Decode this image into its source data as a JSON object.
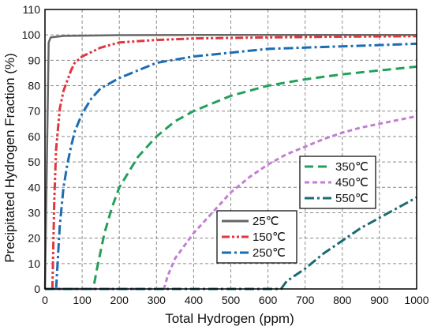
{
  "chart_data": {
    "type": "line",
    "xlabel": "Total Hydrogen (ppm)",
    "ylabel": "Precipitated Hydrogen Fraction (%)",
    "xlim": [
      0,
      1000
    ],
    "ylim": [
      0,
      110
    ],
    "xticks": [
      0,
      100,
      200,
      300,
      400,
      500,
      600,
      700,
      800,
      900,
      1000
    ],
    "yticks": [
      0,
      10,
      20,
      30,
      40,
      50,
      60,
      70,
      80,
      90,
      100,
      110
    ],
    "grid": "dashed",
    "legends": [
      {
        "placement": "bottom-left",
        "series_indices": [
          0,
          1,
          2
        ]
      },
      {
        "placement": "middle-right",
        "series_indices": [
          3,
          4,
          5
        ]
      }
    ],
    "series": [
      {
        "name": "25℃",
        "color": "#666666",
        "dash": "solid",
        "x": [
          0,
          10,
          15,
          50,
          200,
          500,
          1000
        ],
        "y": [
          0,
          97,
          99,
          99.6,
          99.9,
          100,
          100
        ]
      },
      {
        "name": "150℃",
        "color": "#e0373d",
        "dash": "dash-dot-dot",
        "x": [
          20,
          25,
          30,
          40,
          50,
          60,
          70,
          80,
          100,
          150,
          200,
          300,
          400,
          600,
          800,
          1000
        ],
        "y": [
          0,
          35,
          55,
          71,
          78,
          82,
          86,
          89,
          91.5,
          95,
          97,
          98,
          98.6,
          99,
          99.3,
          99.5
        ]
      },
      {
        "name": "250℃",
        "color": "#1b6cb4",
        "dash": "dash-dot",
        "x": [
          30,
          40,
          50,
          60,
          70,
          80,
          100,
          125,
          150,
          200,
          300,
          400,
          500,
          600,
          700,
          800,
          900,
          1000
        ],
        "y": [
          0,
          25,
          40,
          49,
          56,
          62,
          69,
          75,
          79,
          83,
          89,
          91.5,
          93,
          94.5,
          95,
          95.5,
          96,
          96.5
        ]
      },
      {
        "name": "350℃",
        "color": "#22a05a",
        "dash": "dashed",
        "x": [
          0,
          130,
          140,
          160,
          180,
          200,
          250,
          300,
          350,
          400,
          500,
          600,
          700,
          800,
          900,
          1000
        ],
        "y": [
          0,
          0,
          8,
          22,
          32,
          40,
          52,
          60,
          66,
          70,
          76,
          80,
          82.5,
          84.5,
          86,
          87.5
        ]
      },
      {
        "name": "450℃",
        "color": "#c27fd2",
        "dash": "dotted",
        "x": [
          0,
          320,
          330,
          350,
          400,
          450,
          500,
          550,
          600,
          650,
          700,
          750,
          800,
          850,
          900,
          950,
          1000
        ],
        "y": [
          0,
          0,
          5,
          12,
          22,
          30,
          38,
          44,
          49,
          53,
          56,
          59,
          61.5,
          63.5,
          65,
          66.5,
          68
        ]
      },
      {
        "name": "550℃",
        "color": "#1a6b74",
        "dash": "dash-dot",
        "x": [
          0,
          635,
          650,
          700,
          750,
          800,
          850,
          900,
          950,
          1000
        ],
        "y": [
          0,
          0,
          3,
          8,
          14,
          19,
          24,
          28,
          32,
          36
        ]
      }
    ]
  }
}
